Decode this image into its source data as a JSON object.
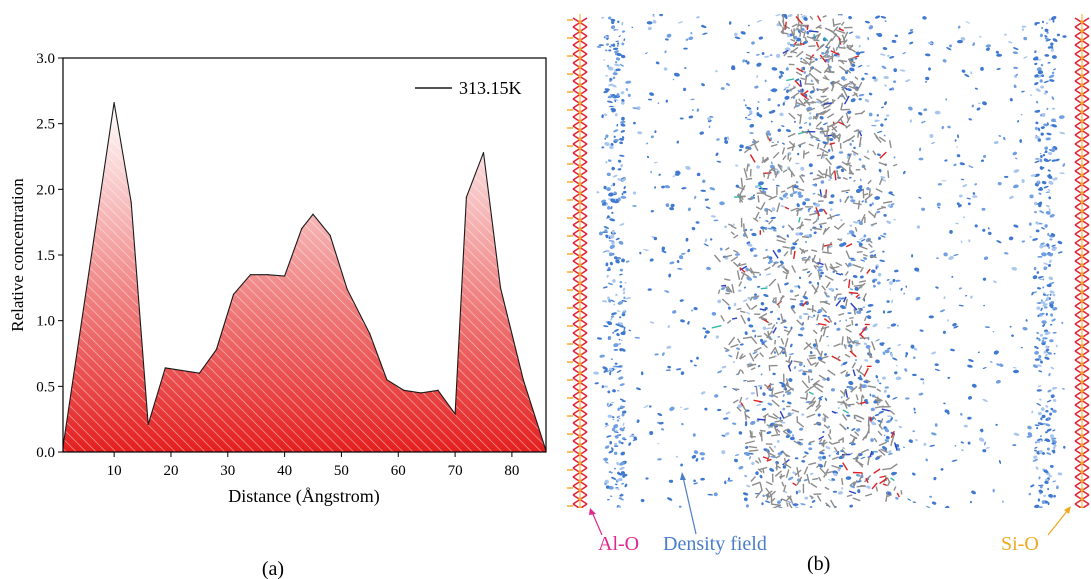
{
  "panel_a": {
    "caption": "(a)",
    "chart_data": {
      "type": "area",
      "x": [
        1,
        10,
        13,
        16,
        19,
        25,
        28,
        31,
        34,
        37,
        40,
        43,
        45,
        48,
        51,
        55,
        58,
        61,
        64,
        67,
        70,
        72,
        75,
        78,
        82,
        86
      ],
      "series": [
        {
          "name": "313.15K",
          "values": [
            0.04,
            2.66,
            1.9,
            0.21,
            0.64,
            0.6,
            0.78,
            1.2,
            1.35,
            1.35,
            1.34,
            1.7,
            1.81,
            1.65,
            1.24,
            0.9,
            0.55,
            0.47,
            0.45,
            0.47,
            0.29,
            1.94,
            2.28,
            1.25,
            0.55,
            0.01
          ]
        }
      ],
      "xlabel": "Distance (Ångstrom)",
      "ylabel": "Relative concentration",
      "xlim": [
        1,
        86
      ],
      "ylim": [
        0,
        3.0
      ],
      "xticks": [
        10,
        20,
        30,
        40,
        50,
        60,
        70,
        80
      ],
      "yticks": [
        "0.0",
        "0.5",
        "1.0",
        "1.5",
        "2.0",
        "2.5",
        "3.0"
      ],
      "grid": false,
      "legend": "top-right",
      "colors": {
        "fill_top": "#ffffff",
        "fill_bottom": "#e41f1f",
        "line": "#1a1a1a"
      }
    }
  },
  "panel_b": {
    "caption": "(b)",
    "labels": {
      "al_o": "Al-O",
      "density": "Density field",
      "si_o": "Si-O"
    },
    "colors": {
      "al_o": "#e0288c",
      "density": "#4a7fc8",
      "si_o": "#f0a81e",
      "wall": "#e8203a",
      "molecule": "#8c8c8c"
    }
  }
}
